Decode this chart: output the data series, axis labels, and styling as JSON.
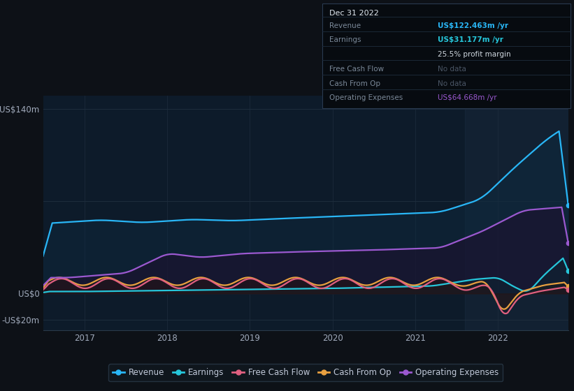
{
  "bg_color": "#0d1117",
  "plot_bg_color": "#0d1b2a",
  "grid_color": "#1e2d3d",
  "series": {
    "revenue": {
      "color": "#29b6f6",
      "fill_color": "#0d2a40",
      "label": "Revenue"
    },
    "earnings": {
      "color": "#26c6da",
      "fill_color": "#0a1e22",
      "label": "Earnings"
    },
    "free_cash_flow": {
      "color": "#e06080",
      "fill_color": "#2a0f18",
      "label": "Free Cash Flow"
    },
    "cash_from_op": {
      "color": "#e8a040",
      "fill_color": "#261a08",
      "label": "Cash From Op"
    },
    "operating_expenses": {
      "color": "#9b59d0",
      "fill_color": "#1e0f2e",
      "label": "Operating Expenses"
    }
  },
  "legend_bg": "#10181f",
  "legend_border": "#2a3a4a",
  "xtick_labels": [
    "2017",
    "2018",
    "2019",
    "2020",
    "2021",
    "2022"
  ]
}
